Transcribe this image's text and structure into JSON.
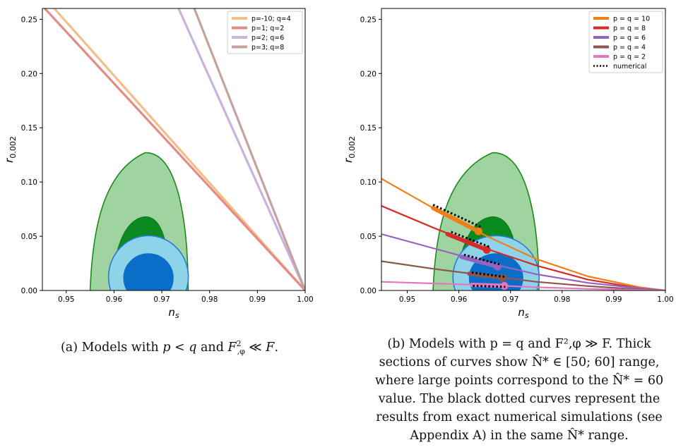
{
  "chart_data": [
    {
      "type": "line",
      "panel": "a",
      "xlabel": "n_s",
      "ylabel": "r_0.002",
      "xlim": [
        0.945,
        1.0
      ],
      "ylim": [
        0.0,
        0.26
      ],
      "xticks": [
        "0.95",
        "0.96",
        "0.97",
        "0.98",
        "0.99",
        "1.00"
      ],
      "yticks": [
        "0.00",
        "0.05",
        "0.10",
        "0.15",
        "0.20",
        "0.25"
      ],
      "legend_position": "top-right",
      "series": [
        {
          "name": "p=-10; q=4",
          "color": "#f5bd8a",
          "x": [
            0.9475,
            1.0
          ],
          "y": [
            0.26,
            0.0
          ]
        },
        {
          "name": "p=1; q=2",
          "color": "#e38c86",
          "x": [
            0.9455,
            1.0
          ],
          "y": [
            0.26,
            0.0
          ]
        },
        {
          "name": "p=2; q=6",
          "color": "#c9b3dc",
          "x": [
            0.9735,
            1.0
          ],
          "y": [
            0.26,
            0.0
          ]
        },
        {
          "name": "p=3; q=8",
          "color": "#c6a29e",
          "x": [
            0.9768,
            1.0
          ],
          "y": [
            0.26,
            0.0
          ]
        }
      ]
    },
    {
      "type": "line",
      "panel": "b",
      "xlabel": "n_s",
      "ylabel": "r_0.002",
      "xlim": [
        0.945,
        1.0
      ],
      "ylim": [
        0.0,
        0.26
      ],
      "xticks": [
        "0.95",
        "0.96",
        "0.97",
        "0.98",
        "0.99",
        "1.00"
      ],
      "yticks": [
        "0.00",
        "0.05",
        "0.10",
        "0.15",
        "0.20",
        "0.25"
      ],
      "legend_position": "top-right",
      "series": [
        {
          "name": "p = q = 10",
          "color": "#f07f16",
          "x": [
            0.945,
            0.955,
            0.965,
            0.975,
            0.985,
            0.995,
            1.0
          ],
          "y": [
            0.103,
            0.076,
            0.051,
            0.029,
            0.013,
            0.003,
            0.0
          ],
          "thick": [
            [
              0.955,
              0.076
            ],
            [
              0.9638,
              0.0545
            ]
          ],
          "point": [
            0.9638,
            0.0545
          ]
        },
        {
          "name": "p = q = 8",
          "color": "#d62b26",
          "x": [
            0.945,
            0.955,
            0.965,
            0.975,
            0.985,
            0.995,
            1.0
          ],
          "y": [
            0.078,
            0.058,
            0.039,
            0.023,
            0.01,
            0.002,
            0.0
          ],
          "thick": [
            [
              0.9578,
              0.052
            ],
            [
              0.9654,
              0.0375
            ]
          ],
          "point": [
            0.9654,
            0.0375
          ]
        },
        {
          "name": "p = q = 6",
          "color": "#9363bf",
          "x": [
            0.945,
            0.955,
            0.965,
            0.975,
            0.985,
            0.995,
            1.0
          ],
          "y": [
            0.052,
            0.039,
            0.026,
            0.015,
            0.007,
            0.002,
            0.0
          ],
          "thick": [
            [
              0.9605,
              0.031
            ],
            [
              0.9675,
              0.022
            ]
          ],
          "point": [
            0.9675,
            0.022
          ]
        },
        {
          "name": "p = q = 4",
          "color": "#8b564b",
          "x": [
            0.945,
            0.955,
            0.965,
            0.975,
            0.985,
            0.995,
            1.0
          ],
          "y": [
            0.027,
            0.02,
            0.014,
            0.008,
            0.004,
            0.001,
            0.0
          ],
          "thick": [
            [
              0.962,
              0.0155
            ],
            [
              0.9685,
              0.0115
            ]
          ],
          "point": [
            0.9685,
            0.0115
          ]
        },
        {
          "name": "p = q = 2",
          "color": "#e277c1",
          "x": [
            0.945,
            0.955,
            0.965,
            0.975,
            0.985,
            0.995,
            1.0
          ],
          "y": [
            0.008,
            0.0065,
            0.005,
            0.003,
            0.0015,
            0.0005,
            0.0
          ],
          "thick": [
            [
              0.9625,
              0.0052
            ],
            [
              0.9688,
              0.0042
            ]
          ],
          "point": [
            0.9688,
            0.0042
          ]
        },
        {
          "name": "numerical",
          "color": "#000000",
          "dotted": true,
          "segments": [
            [
              [
                0.955,
                0.079
              ],
              [
                0.9645,
                0.058
              ]
            ],
            [
              [
                0.9585,
                0.054
              ],
              [
                0.966,
                0.04
              ]
            ],
            [
              [
                0.961,
                0.033
              ],
              [
                0.968,
                0.024
              ]
            ],
            [
              [
                0.9625,
                0.0165
              ],
              [
                0.969,
                0.0125
              ]
            ],
            [
              [
                0.9627,
                0.0043
              ],
              [
                0.969,
                0.0033
              ]
            ]
          ]
        }
      ]
    }
  ],
  "captions": {
    "a": {
      "label": "(a) Models with ",
      "p": "p",
      "lt": " < ",
      "q": "q",
      "and": " and ",
      "F": "F",
      "sub": ",φ",
      "sup": "2",
      "rel": " ≪ ",
      "F2": "F",
      "end": "."
    },
    "b": {
      "line1": "(b) Models with p = q and F²,φ ≫ F. Thick",
      "line2": "sections of curves show N̂* ∈ [50; 60] range,",
      "line3": "where large points correspond to the N̂* = 60",
      "line4": "value. The black dotted curves represent the",
      "line5": "results from exact numerical simulations (see",
      "line6": "Appendix A) in the same N̂* range."
    }
  }
}
